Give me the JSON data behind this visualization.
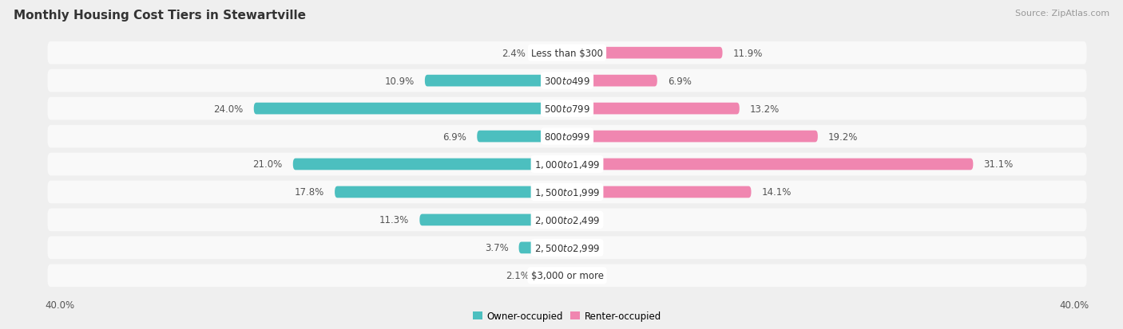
{
  "title": "Monthly Housing Cost Tiers in Stewartville",
  "source": "Source: ZipAtlas.com",
  "categories": [
    "Less than $300",
    "$300 to $499",
    "$500 to $799",
    "$800 to $999",
    "$1,000 to $1,499",
    "$1,500 to $1,999",
    "$2,000 to $2,499",
    "$2,500 to $2,999",
    "$3,000 or more"
  ],
  "owner_values": [
    2.4,
    10.9,
    24.0,
    6.9,
    21.0,
    17.8,
    11.3,
    3.7,
    2.1
  ],
  "renter_values": [
    11.9,
    6.9,
    13.2,
    19.2,
    31.1,
    14.1,
    0.0,
    0.0,
    0.0
  ],
  "owner_color": "#4cbfbf",
  "renter_color": "#f086b0",
  "background_color": "#efefef",
  "row_bg_color": "#f9f9f9",
  "row_sep_color": "#e0e0e0",
  "axis_limit": 40.0,
  "title_fontsize": 11,
  "bar_label_fontsize": 8.5,
  "cat_label_fontsize": 8.5,
  "tick_fontsize": 8.5,
  "source_fontsize": 8,
  "legend_fontsize": 8.5
}
